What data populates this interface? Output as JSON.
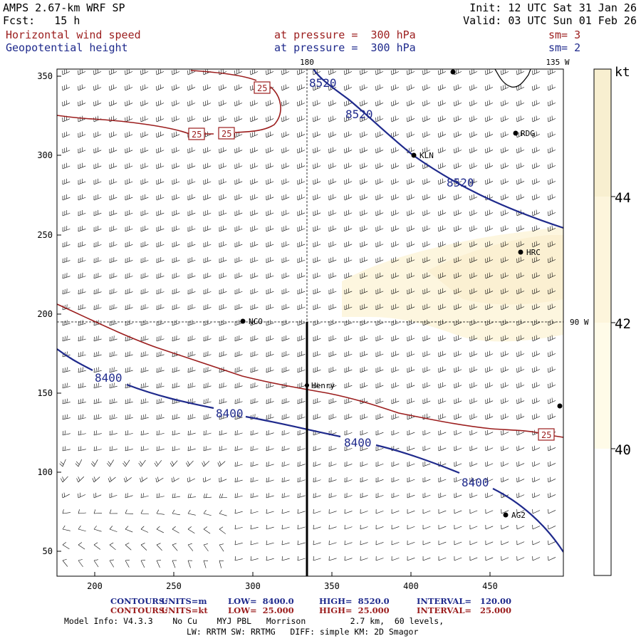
{
  "header": {
    "model_title": "AMPS 2.67-km WRF SP",
    "init": "Init: 12 UTC Sat 31 Jan 26",
    "fcst": "Fcst:   15 h",
    "valid": "Valid: 03 UTC Sun 01 Feb 26",
    "field1_name": "Horizontal wind speed",
    "field1_level": "at pressure =  300 hPa",
    "field1_sm": "sm= 3",
    "field2_name": "Geopotential height",
    "field2_level": "at pressure =  300 hPa",
    "field2_sm": "sm= 2"
  },
  "map": {
    "meridian_labels": [
      "180",
      "135 W",
      "90 W"
    ],
    "x_ticks": [
      "200",
      "250",
      "300",
      "350",
      "400",
      "450"
    ],
    "y_ticks": [
      "350",
      "300",
      "250",
      "200",
      "150",
      "100",
      "50"
    ],
    "stations": [
      "RDG",
      "KLN",
      "HRC",
      "NCO",
      "Henry",
      "AG2"
    ],
    "height_contour_labels": [
      "8520",
      "8520",
      "8520",
      "8400",
      "8400",
      "8400",
      "8400"
    ],
    "speed_contour_labels": [
      "25",
      "25",
      "25",
      "25"
    ],
    "colors": {
      "height": "#1f2a8c",
      "speed": "#9b1d1d",
      "shade": "#fbf3d8",
      "cross_section": "#000000"
    }
  },
  "colorbar": {
    "unit": "kt",
    "labels": [
      "44",
      "42",
      "40"
    ],
    "levels": [
      40,
      42,
      44
    ],
    "fill_colors": [
      "#fffbe8",
      "#fdf5dc",
      "#f8efd0"
    ]
  },
  "footer": {
    "contours1_label": "CONTOURS:",
    "contours1_units": "UNITS=m",
    "contours1_low": "LOW=  8400.0",
    "contours1_high": "HIGH=  8520.0",
    "contours1_interval": "INTERVAL=   120.00",
    "contours2_label": "CONTOURS:",
    "contours2_units": "UNITS=kt",
    "contours2_low": "LOW=  25.000",
    "contours2_high": "HIGH=  25.000",
    "contours2_interval": "INTERVAL=   25.000",
    "model_info": "Model Info: V4.3.3    No Cu    MYJ PBL   Morrison         2.7 km,  60 levels,",
    "physics": "LW: RRTM SW: RRTMG   DIFF: simple KM: 2D Smagor"
  }
}
